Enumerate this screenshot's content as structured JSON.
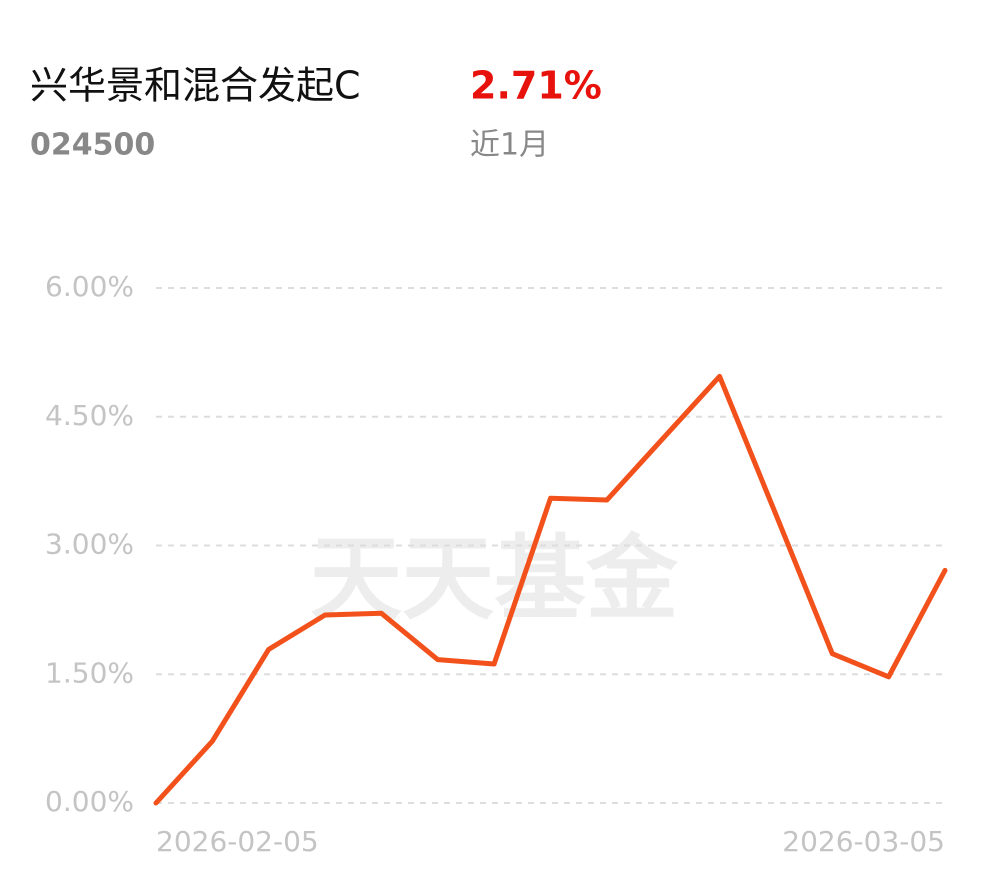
{
  "header": {
    "title": "兴华景和混合发起C",
    "return": "2.71%",
    "code": "024500",
    "period": "近1月"
  },
  "watermark": "天天基金",
  "chart_data": {
    "type": "line",
    "categories": [
      "2026-02-05",
      null,
      null,
      null,
      null,
      null,
      null,
      null,
      null,
      null,
      null,
      null,
      null,
      null,
      "2026-03-05"
    ],
    "series": [
      {
        "color": "#f2511b",
        "values": [
          0,
          0.72,
          1.79,
          2.19,
          2.21,
          1.67,
          1.62,
          3.55,
          3.53,
          4.25,
          4.97,
          3.36,
          1.74,
          1.47,
          2.71
        ]
      }
    ],
    "ylim": [
      0,
      6
    ],
    "yticks": [
      {
        "value": 0,
        "label": "0.00%"
      },
      {
        "value": 1.5,
        "label": "1.50%"
      },
      {
        "value": 3,
        "label": "3.00%"
      },
      {
        "value": 4.5,
        "label": "4.50%"
      },
      {
        "value": 6,
        "label": "6.00%"
      }
    ],
    "grid": true
  }
}
